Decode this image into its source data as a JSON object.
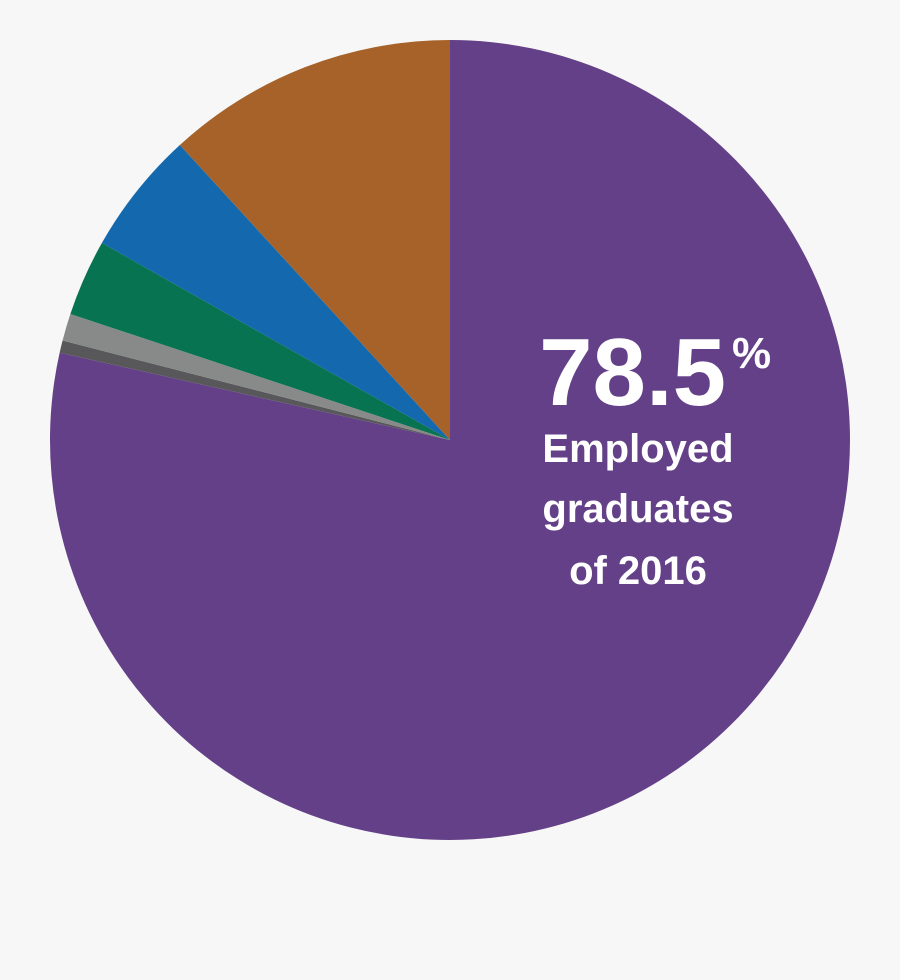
{
  "chart_data": {
    "type": "pie",
    "start": "top, clockwise",
    "slices": [
      {
        "value": 78.5,
        "color": "#634087"
      },
      {
        "value": 0.5,
        "color": "#58585a"
      },
      {
        "value": 1.1,
        "color": "#888a89"
      },
      {
        "value": 3.1,
        "color": "#077350"
      },
      {
        "value": 5.0,
        "color": "#1468ae"
      },
      {
        "value": 11.8,
        "color": "#a66228"
      }
    ],
    "annotation": {
      "value": "78.5",
      "unit": "%",
      "lines": [
        "Employed",
        "graduates",
        "of 2016"
      ]
    }
  }
}
